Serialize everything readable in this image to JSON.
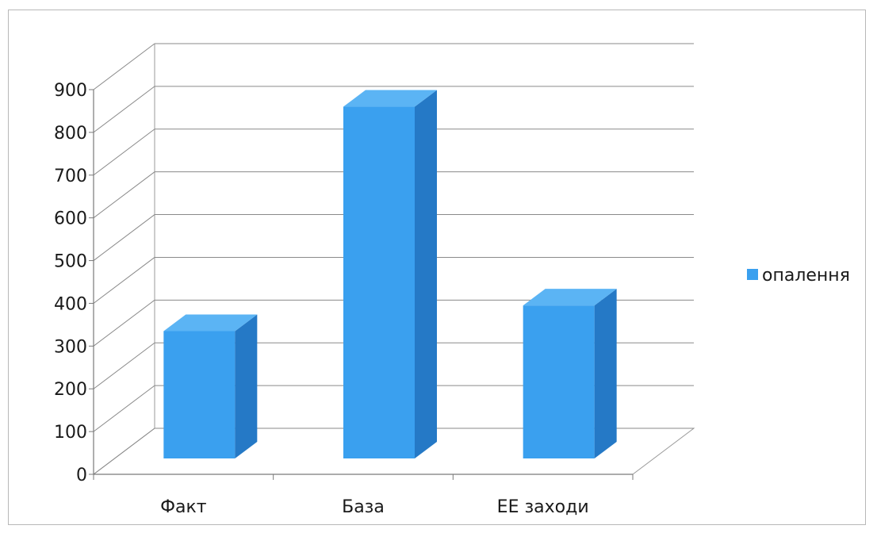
{
  "chart_data": {
    "type": "bar",
    "style": "3d-column",
    "title": "",
    "xlabel": "",
    "ylabel": "",
    "categories": [
      "Факт",
      "База",
      "ЕЕ заходи"
    ],
    "series": [
      {
        "name": "опалення",
        "values": [
          335,
          860,
          395
        ],
        "color": "#3aa0ef"
      }
    ],
    "ylim": [
      0,
      900
    ],
    "yticks": [
      0,
      100,
      200,
      300,
      400,
      500,
      600,
      700,
      800,
      900
    ],
    "grid": true,
    "legend": "right"
  }
}
